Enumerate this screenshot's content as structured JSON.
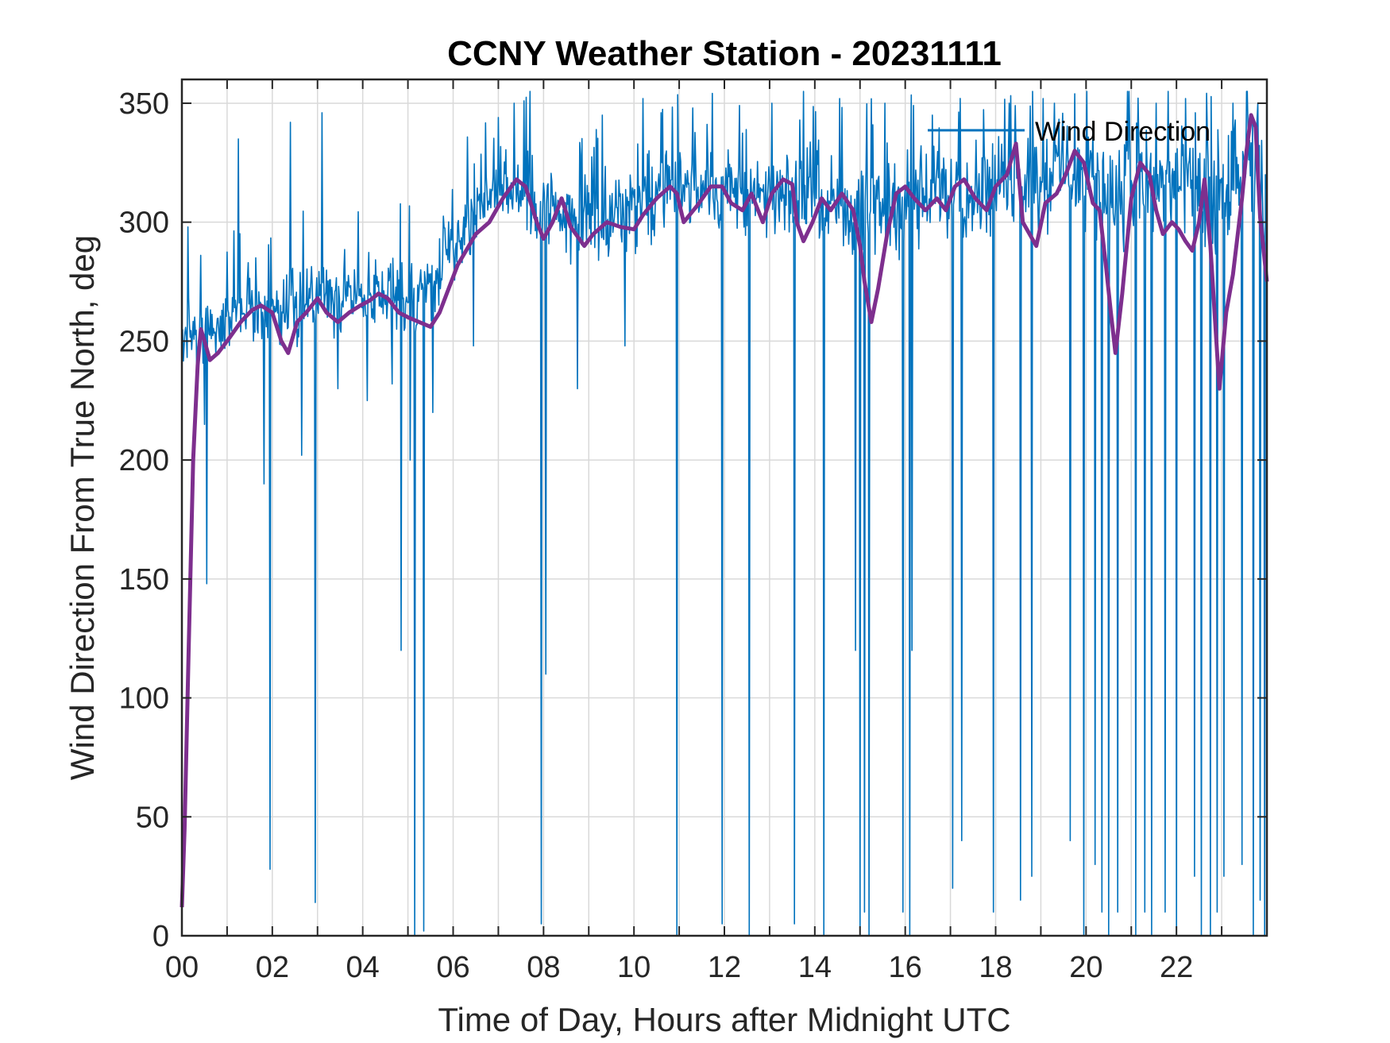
{
  "chart_data": {
    "type": "line",
    "title": "CCNY Weather Station - 20231111",
    "xlabel": "Time of Day, Hours after Midnight UTC",
    "ylabel": "Wind Direction From True North, deg",
    "xlim": [
      0,
      24
    ],
    "ylim": [
      0,
      360
    ],
    "xticks": [
      0,
      2,
      4,
      6,
      8,
      10,
      12,
      14,
      16,
      18,
      20,
      22
    ],
    "xtick_labels": [
      "00",
      "02",
      "04",
      "06",
      "08",
      "10",
      "12",
      "14",
      "16",
      "18",
      "20",
      "22"
    ],
    "yticks": [
      0,
      50,
      100,
      150,
      200,
      250,
      300,
      350
    ],
    "ytick_labels": [
      "0",
      "50",
      "100",
      "150",
      "200",
      "250",
      "300",
      "350"
    ],
    "grid": true,
    "legend": {
      "position": "top-right",
      "entries": [
        "Wind Direction"
      ]
    },
    "colors": {
      "raw": "#0072BD",
      "smoothed": "#7E2F8E",
      "grid": "#d9d9d9",
      "axes": "#262626"
    },
    "series": [
      {
        "name": "Wind Direction",
        "color": "#0072BD",
        "envelope_x": [
          0,
          0.3,
          0.6,
          1,
          1.5,
          2,
          2.5,
          3,
          3.5,
          4,
          4.5,
          5,
          5.5,
          6,
          6.5,
          7,
          7.5,
          8,
          8.5,
          9,
          9.5,
          10,
          10.5,
          11,
          11.5,
          12,
          12.5,
          13,
          13.5,
          14,
          14.5,
          15,
          15.5,
          16,
          16.5,
          17,
          17.5,
          18,
          18.5,
          19,
          19.5,
          20,
          20.5,
          21,
          21.5,
          22,
          22.5,
          23,
          23.5,
          24
        ],
        "envelope_low": [
          240,
          235,
          240,
          245,
          250,
          245,
          245,
          250,
          250,
          255,
          250,
          245,
          250,
          270,
          285,
          295,
          290,
          285,
          280,
          280,
          280,
          285,
          290,
          295,
          295,
          295,
          290,
          290,
          290,
          290,
          290,
          280,
          280,
          285,
          285,
          290,
          290,
          290,
          295,
          290,
          300,
          290,
          280,
          285,
          285,
          285,
          280,
          275,
          290,
          290
        ],
        "envelope_high": [
          270,
          265,
          270,
          275,
          280,
          280,
          285,
          285,
          285,
          285,
          290,
          290,
          300,
          310,
          320,
          335,
          335,
          330,
          320,
          325,
          325,
          330,
          335,
          335,
          335,
          335,
          330,
          330,
          330,
          330,
          330,
          330,
          335,
          335,
          335,
          340,
          340,
          340,
          345,
          345,
          350,
          350,
          345,
          345,
          345,
          345,
          345,
          345,
          350,
          350
        ],
        "spikes": [
          [
            0.13,
            298
          ],
          [
            0.33,
            225
          ],
          [
            0.5,
            215
          ],
          [
            0.55,
            148
          ],
          [
            0.9,
            250
          ],
          [
            1.25,
            335
          ],
          [
            1.82,
            190
          ],
          [
            1.95,
            28
          ],
          [
            2.4,
            342
          ],
          [
            2.65,
            202
          ],
          [
            2.95,
            14
          ],
          [
            3.1,
            346
          ],
          [
            3.45,
            230
          ],
          [
            4.1,
            225
          ],
          [
            4.65,
            232
          ],
          [
            4.85,
            120
          ],
          [
            5.05,
            200
          ],
          [
            5.15,
            0
          ],
          [
            5.35,
            2
          ],
          [
            5.55,
            220
          ],
          [
            5.95,
            297
          ],
          [
            6.45,
            248
          ],
          [
            7.0,
            344
          ],
          [
            7.35,
            350
          ],
          [
            7.7,
            355
          ],
          [
            7.95,
            5
          ],
          [
            8.05,
            110
          ],
          [
            8.75,
            230
          ],
          [
            9.3,
            345
          ],
          [
            9.8,
            248
          ],
          [
            10.2,
            352
          ],
          [
            10.6,
            346
          ],
          [
            10.95,
            0
          ],
          [
            11.3,
            348
          ],
          [
            11.95,
            5
          ],
          [
            12.55,
            0
          ],
          [
            13.05,
            350
          ],
          [
            13.55,
            5
          ],
          [
            13.75,
            355
          ],
          [
            14.05,
            330
          ],
          [
            14.2,
            0
          ],
          [
            14.55,
            352
          ],
          [
            14.9,
            120
          ],
          [
            15.0,
            0
          ],
          [
            15.1,
            10
          ],
          [
            15.2,
            0
          ],
          [
            15.55,
            350
          ],
          [
            15.95,
            10
          ],
          [
            16.1,
            0
          ],
          [
            16.15,
            120
          ],
          [
            16.6,
            345
          ],
          [
            17.05,
            20
          ],
          [
            17.25,
            40
          ],
          [
            17.95,
            10
          ],
          [
            18.3,
            350
          ],
          [
            18.55,
            15
          ],
          [
            18.8,
            25
          ],
          [
            19.05,
            352
          ],
          [
            19.3,
            350
          ],
          [
            19.65,
            40
          ],
          [
            19.75,
            354
          ],
          [
            19.95,
            0
          ],
          [
            20.2,
            30
          ],
          [
            20.35,
            10
          ],
          [
            20.5,
            0
          ],
          [
            20.7,
            10
          ],
          [
            20.95,
            355
          ],
          [
            21.1,
            0
          ],
          [
            21.3,
            10
          ],
          [
            21.45,
            0
          ],
          [
            21.55,
            350
          ],
          [
            21.75,
            10
          ],
          [
            22.0,
            0
          ],
          [
            22.2,
            352
          ],
          [
            22.4,
            25
          ],
          [
            22.55,
            0
          ],
          [
            22.75,
            0
          ],
          [
            22.9,
            10
          ],
          [
            23.05,
            25
          ],
          [
            23.25,
            350
          ],
          [
            23.45,
            30
          ],
          [
            23.55,
            355
          ],
          [
            23.7,
            0
          ],
          [
            23.8,
            350
          ],
          [
            23.85,
            15
          ],
          [
            23.95,
            0
          ]
        ]
      },
      {
        "name": "",
        "color": "#7E2F8E",
        "x": [
          0,
          0.06,
          0.15,
          0.25,
          0.35,
          0.42,
          0.5,
          0.62,
          0.8,
          1.0,
          1.3,
          1.55,
          1.75,
          2.0,
          2.2,
          2.35,
          2.55,
          2.75,
          3.0,
          3.2,
          3.45,
          3.7,
          3.95,
          4.15,
          4.35,
          4.55,
          4.8,
          5.0,
          5.25,
          5.5,
          5.7,
          5.9,
          6.1,
          6.5,
          6.8,
          7.1,
          7.4,
          7.6,
          7.85,
          8.0,
          8.2,
          8.4,
          8.6,
          8.9,
          9.1,
          9.4,
          9.7,
          10.0,
          10.2,
          10.5,
          10.8,
          10.95,
          11.1,
          11.4,
          11.7,
          11.95,
          12.15,
          12.4,
          12.6,
          12.85,
          13.05,
          13.3,
          13.5,
          13.6,
          13.75,
          13.95,
          14.15,
          14.35,
          14.6,
          14.85,
          15.0,
          15.1,
          15.25,
          15.4,
          15.6,
          15.8,
          16.0,
          16.2,
          16.45,
          16.7,
          16.9,
          17.1,
          17.3,
          17.55,
          17.8,
          18.0,
          18.25,
          18.45,
          18.6,
          18.75,
          18.9,
          19.1,
          19.35,
          19.55,
          19.75,
          19.95,
          20.15,
          20.3,
          20.45,
          20.55,
          20.65,
          20.8,
          21.0,
          21.2,
          21.4,
          21.55,
          21.7,
          21.9,
          22.05,
          22.2,
          22.35,
          22.5,
          22.62,
          22.75,
          22.85,
          22.95,
          23.1,
          23.25,
          23.45,
          23.55,
          23.65,
          23.75,
          23.85,
          24.0
        ],
        "y": [
          12,
          45,
          120,
          200,
          240,
          255,
          250,
          242,
          245,
          250,
          258,
          263,
          265,
          262,
          250,
          245,
          258,
          262,
          268,
          262,
          258,
          262,
          265,
          267,
          270,
          268,
          262,
          260,
          258,
          256,
          262,
          272,
          282,
          295,
          300,
          310,
          318,
          315,
          300,
          293,
          300,
          310,
          298,
          290,
          295,
          300,
          298,
          297,
          303,
          310,
          315,
          312,
          300,
          307,
          315,
          315,
          308,
          305,
          312,
          300,
          312,
          318,
          316,
          300,
          292,
          300,
          310,
          305,
          312,
          305,
          290,
          275,
          258,
          272,
          295,
          312,
          315,
          310,
          305,
          310,
          305,
          315,
          318,
          310,
          305,
          315,
          320,
          333,
          300,
          295,
          290,
          308,
          312,
          320,
          330,
          325,
          308,
          305,
          280,
          262,
          245,
          270,
          310,
          325,
          320,
          305,
          295,
          300,
          297,
          292,
          288,
          300,
          318,
          290,
          260,
          230,
          262,
          278,
          310,
          330,
          345,
          340,
          302,
          275
        ]
      }
    ]
  }
}
